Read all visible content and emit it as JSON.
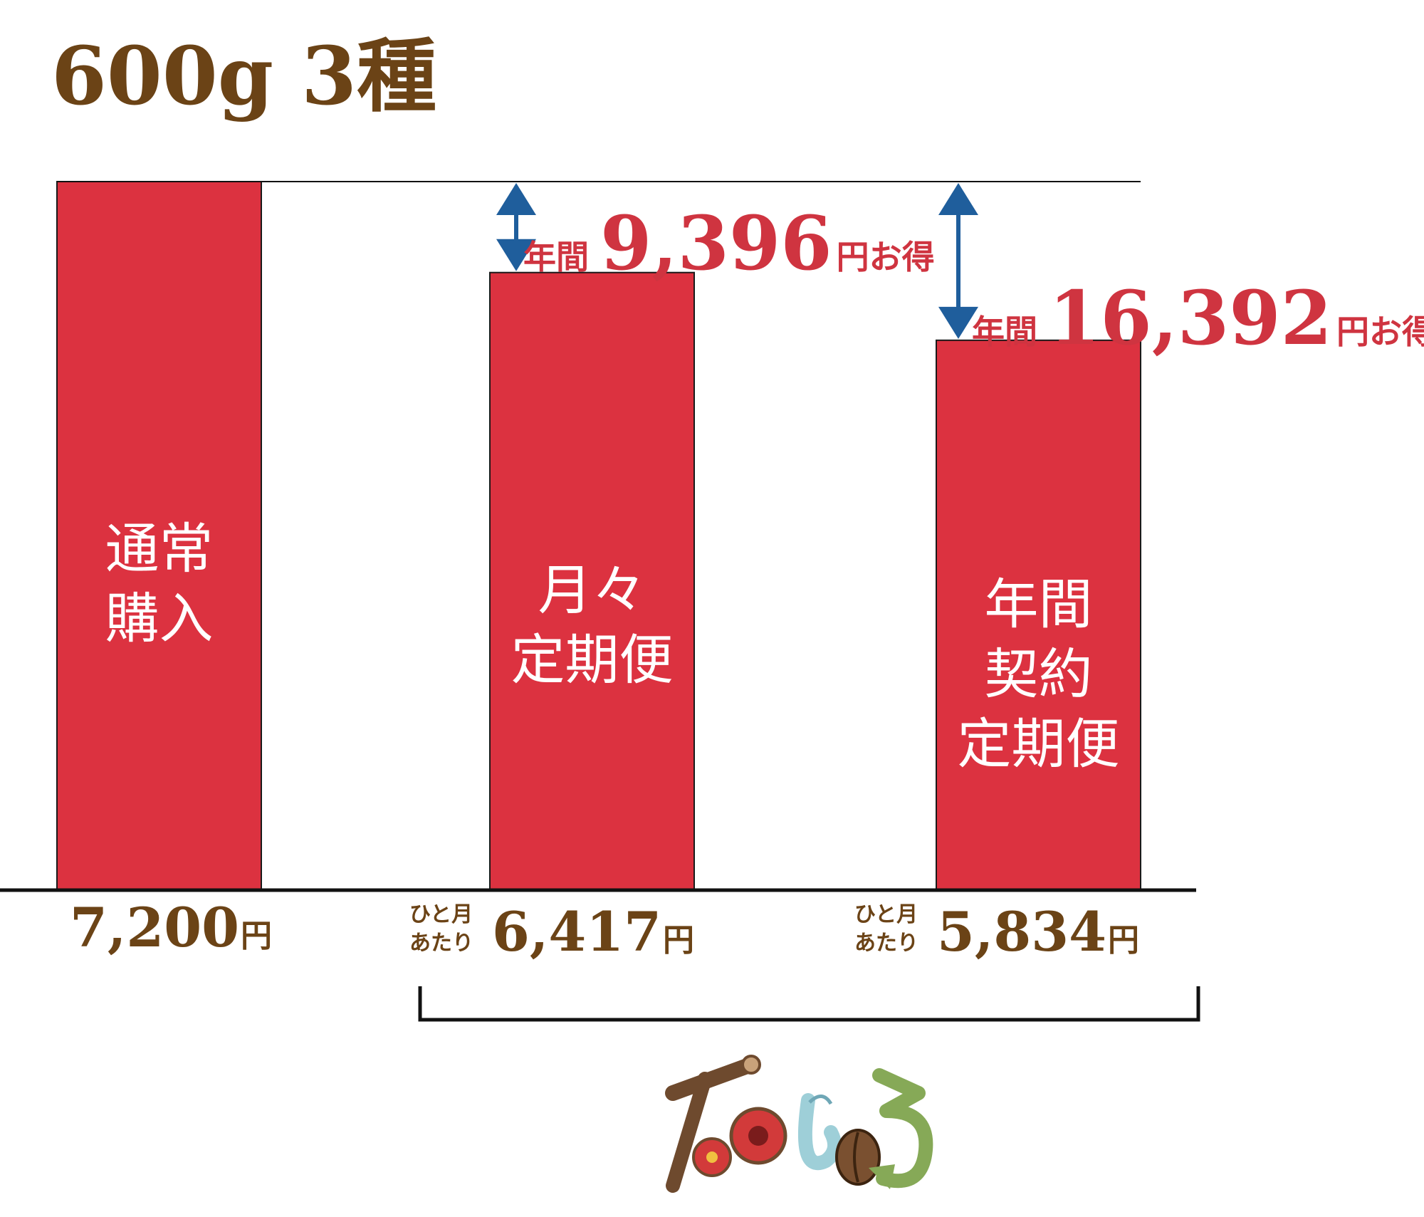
{
  "title": "600g 3種",
  "colors": {
    "bar": "#dc3240",
    "saving_text": "#cf3440",
    "price_text": "#6b4316",
    "arrow": "#1f5e9c"
  },
  "chart_data": {
    "type": "bar",
    "categories": [
      "通常\n購入",
      "月々\n定期便",
      "年間\n契約\n定期便"
    ],
    "values": [
      7200,
      6417,
      5834
    ],
    "series": [
      {
        "values": [
          7200,
          6417,
          5834
        ]
      }
    ],
    "title": "600g 3種",
    "xlabel": "",
    "ylabel": "",
    "grid": false,
    "legend": "none",
    "reference_line": 7200,
    "price_labels": [
      {
        "per_month": "",
        "value": "7,200",
        "unit": "円"
      },
      {
        "per_month": "ひと月\nあたり",
        "value": "6,417",
        "unit": "円"
      },
      {
        "per_month": "ひと月\nあたり",
        "value": "5,834",
        "unit": "円"
      }
    ],
    "annotations": [
      {
        "target_bar": 1,
        "prefix": "年間",
        "value": "9,396",
        "suffix": "円お得"
      },
      {
        "target_bar": 2,
        "prefix": "年間",
        "value": "16,392",
        "suffix": "円お得"
      }
    ]
  },
  "logo": {
    "name": "tanoshiro-logo-icon",
    "text": "たのしくる"
  }
}
